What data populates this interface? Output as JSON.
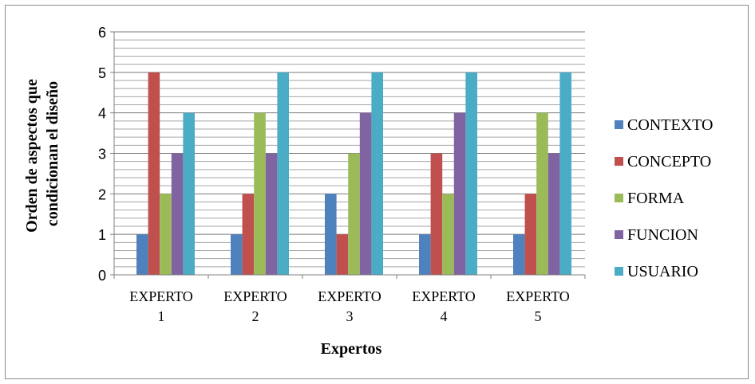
{
  "chart_data": {
    "type": "bar",
    "title": "",
    "categories": [
      [
        "EXPERTO",
        "1"
      ],
      [
        "EXPERTO",
        "2"
      ],
      [
        "EXPERTO",
        "3"
      ],
      [
        "EXPERTO",
        "4"
      ],
      [
        "EXPERTO",
        "5"
      ]
    ],
    "series": [
      {
        "name": "CONTEXTO",
        "color": "#4F81BD",
        "values": [
          1,
          1,
          2,
          1,
          1
        ]
      },
      {
        "name": "CONCEPTO",
        "color": "#C0504D",
        "values": [
          5,
          2,
          1,
          3,
          2
        ]
      },
      {
        "name": "FORMA",
        "color": "#9BBB59",
        "values": [
          2,
          4,
          3,
          2,
          4
        ]
      },
      {
        "name": "FUNCION",
        "color": "#8064A2",
        "values": [
          3,
          3,
          4,
          4,
          3
        ]
      },
      {
        "name": "USUARIO",
        "color": "#4BACC6",
        "values": [
          4,
          5,
          5,
          5,
          5
        ]
      }
    ],
    "xlabel": "Expertos",
    "ylabel": [
      "Orden de aspectos que",
      "condicionan el diseño"
    ],
    "ylim": [
      0,
      6
    ],
    "yticks": [
      0,
      1,
      2,
      3,
      4,
      5,
      6
    ],
    "minor_gridline_step": 0.2,
    "grid": true,
    "legend_position": "right"
  }
}
